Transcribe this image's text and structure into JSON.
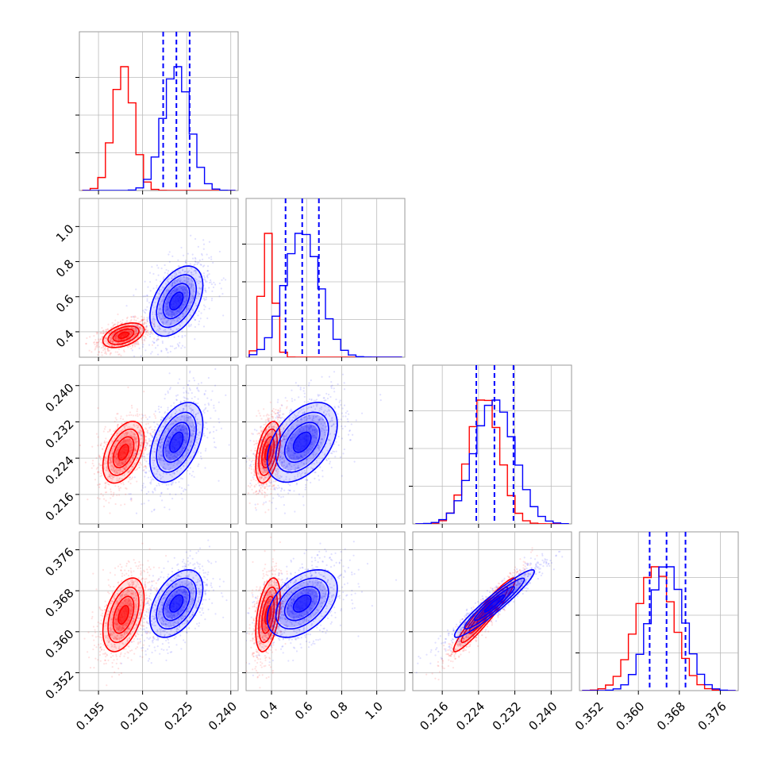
{
  "chart_data": {
    "type": "corner",
    "parameters": [
      {
        "id": "p1",
        "range": [
          0.1885,
          0.2425
        ],
        "ticks": [
          "0.195",
          "0.210",
          "0.225",
          "0.240"
        ],
        "tick_values": [
          0.195,
          0.21,
          0.225,
          0.24
        ]
      },
      {
        "id": "p2",
        "range": [
          0.255,
          1.16
        ],
        "ticks": [
          "0.4",
          "0.6",
          "0.8",
          "1.0"
        ],
        "tick_values": [
          0.4,
          0.6,
          0.8,
          1.0
        ]
      },
      {
        "id": "p3",
        "range": [
          0.2095,
          0.2445
        ],
        "ticks": [
          "0.216",
          "0.224",
          "0.232",
          "0.240"
        ],
        "tick_values": [
          0.216,
          0.224,
          0.232,
          0.24
        ]
      },
      {
        "id": "p4",
        "range": [
          0.3485,
          0.3795
        ],
        "ticks": [
          "0.352",
          "0.360",
          "0.368",
          "0.376"
        ],
        "tick_values": [
          0.352,
          0.36,
          0.368,
          0.376
        ]
      }
    ],
    "series": [
      {
        "color": "#ff0000",
        "mean": [
          0.2035,
          0.38,
          0.2253,
          0.3633
        ],
        "sd": [
          0.0035,
          0.035,
          0.0034,
          0.0036
        ]
      },
      {
        "color": "#0000ff",
        "mean": [
          0.2215,
          0.575,
          0.2275,
          0.3655
        ],
        "sd": [
          0.0045,
          0.1,
          0.0044,
          0.0033
        ]
      }
    ],
    "quantile_lines": {
      "color": "#0000ff",
      "values": [
        [
          0.217,
          0.2215,
          0.226
        ],
        [
          0.48,
          0.575,
          0.67
        ],
        [
          0.2235,
          0.2275,
          0.2317
        ],
        [
          0.3622,
          0.3655,
          0.3692
        ]
      ]
    },
    "grid": true
  }
}
